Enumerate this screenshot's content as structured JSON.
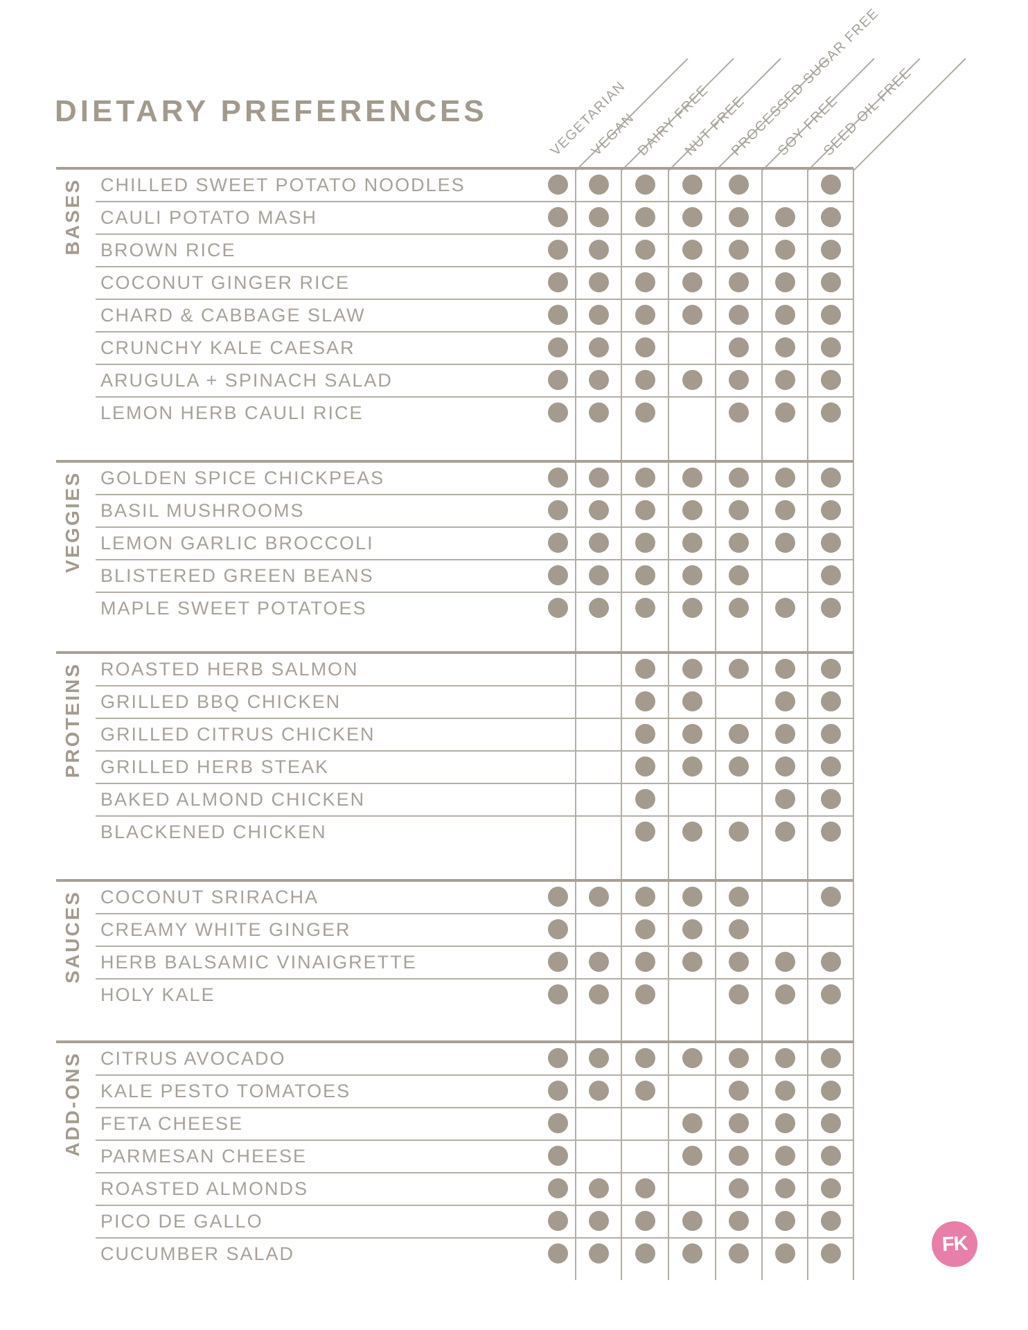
{
  "title": "DIETARY PREFERENCES",
  "columns": [
    "VEGETARIAN",
    "VEGAN",
    "DAIRY FREE",
    "NUT FREE",
    "PROCESSED SUGAR FREE",
    "SOY FREE",
    "SEED OIL FREE"
  ],
  "sections": [
    {
      "name": "BASES",
      "items": [
        {
          "label": "CHILLED SWEET POTATO NOODLES",
          "marks": [
            1,
            1,
            1,
            1,
            1,
            0,
            1
          ]
        },
        {
          "label": "CAULI POTATO MASH",
          "marks": [
            1,
            1,
            1,
            1,
            1,
            1,
            1
          ]
        },
        {
          "label": "BROWN RICE",
          "marks": [
            1,
            1,
            1,
            1,
            1,
            1,
            1
          ]
        },
        {
          "label": "COCONUT GINGER RICE",
          "marks": [
            1,
            1,
            1,
            1,
            1,
            1,
            1
          ]
        },
        {
          "label": "CHARD & CABBAGE SLAW",
          "marks": [
            1,
            1,
            1,
            1,
            1,
            1,
            1
          ]
        },
        {
          "label": "CRUNCHY KALE CAESAR",
          "marks": [
            1,
            1,
            1,
            0,
            1,
            1,
            1
          ]
        },
        {
          "label": "ARUGULA + SPINACH SALAD",
          "marks": [
            1,
            1,
            1,
            1,
            1,
            1,
            1
          ]
        },
        {
          "label": "LEMON HERB CAULI RICE",
          "marks": [
            1,
            1,
            1,
            0,
            1,
            1,
            1
          ]
        }
      ]
    },
    {
      "name": "VEGGIES",
      "items": [
        {
          "label": "GOLDEN SPICE CHICKPEAS",
          "marks": [
            1,
            1,
            1,
            1,
            1,
            1,
            1
          ]
        },
        {
          "label": "BASIL MUSHROOMS",
          "marks": [
            1,
            1,
            1,
            1,
            1,
            1,
            1
          ]
        },
        {
          "label": "LEMON GARLIC BROCCOLI",
          "marks": [
            1,
            1,
            1,
            1,
            1,
            1,
            1
          ]
        },
        {
          "label": "BLISTERED GREEN BEANS",
          "marks": [
            1,
            1,
            1,
            1,
            1,
            0,
            1
          ]
        },
        {
          "label": "MAPLE SWEET POTATOES",
          "marks": [
            1,
            1,
            1,
            1,
            1,
            1,
            1
          ]
        }
      ]
    },
    {
      "name": "PROTEINS",
      "items": [
        {
          "label": "ROASTED HERB SALMON",
          "marks": [
            0,
            0,
            1,
            1,
            1,
            1,
            1
          ]
        },
        {
          "label": "GRILLED BBQ CHICKEN",
          "marks": [
            0,
            0,
            1,
            1,
            0,
            1,
            1
          ]
        },
        {
          "label": "GRILLED CITRUS CHICKEN",
          "marks": [
            0,
            0,
            1,
            1,
            1,
            1,
            1
          ]
        },
        {
          "label": "GRILLED HERB STEAK",
          "marks": [
            0,
            0,
            1,
            1,
            1,
            1,
            1
          ]
        },
        {
          "label": "BAKED ALMOND CHICKEN",
          "marks": [
            0,
            0,
            1,
            0,
            0,
            1,
            1
          ]
        },
        {
          "label": "BLACKENED CHICKEN",
          "marks": [
            0,
            0,
            1,
            1,
            1,
            1,
            1
          ]
        }
      ]
    },
    {
      "name": "SAUCES",
      "items": [
        {
          "label": "COCONUT SRIRACHA",
          "marks": [
            1,
            1,
            1,
            1,
            1,
            0,
            1
          ]
        },
        {
          "label": "CREAMY WHITE GINGER",
          "marks": [
            1,
            0,
            1,
            1,
            1,
            0,
            0
          ]
        },
        {
          "label": "HERB BALSAMIC VINAIGRETTE",
          "marks": [
            1,
            1,
            1,
            1,
            1,
            1,
            1
          ]
        },
        {
          "label": "HOLY KALE",
          "marks": [
            1,
            1,
            1,
            0,
            1,
            1,
            1
          ]
        }
      ]
    },
    {
      "name": "ADD-ONS",
      "items": [
        {
          "label": "CITRUS AVOCADO",
          "marks": [
            1,
            1,
            1,
            1,
            1,
            1,
            1
          ]
        },
        {
          "label": "KALE PESTO TOMATOES",
          "marks": [
            1,
            1,
            1,
            0,
            1,
            1,
            1
          ]
        },
        {
          "label": "FETA CHEESE",
          "marks": [
            1,
            0,
            0,
            1,
            1,
            1,
            1
          ]
        },
        {
          "label": "PARMESAN CHEESE",
          "marks": [
            1,
            0,
            0,
            1,
            1,
            1,
            1
          ]
        },
        {
          "label": "ROASTED ALMONDS",
          "marks": [
            1,
            1,
            1,
            0,
            1,
            1,
            1
          ]
        },
        {
          "label": "PICO DE GALLO",
          "marks": [
            1,
            1,
            1,
            1,
            1,
            1,
            1
          ]
        },
        {
          "label": "CUCUMBER SALAD",
          "marks": [
            1,
            1,
            1,
            1,
            1,
            1,
            1
          ]
        }
      ]
    }
  ],
  "logo_text": "FK",
  "colors": {
    "taupe": "#a49a8e",
    "label_gray": "#a7a199",
    "grid_line": "#b4aea5",
    "section_border": "#a8a096",
    "logo_pink": "#e87fa8",
    "logo_letters": "#ffffff"
  }
}
